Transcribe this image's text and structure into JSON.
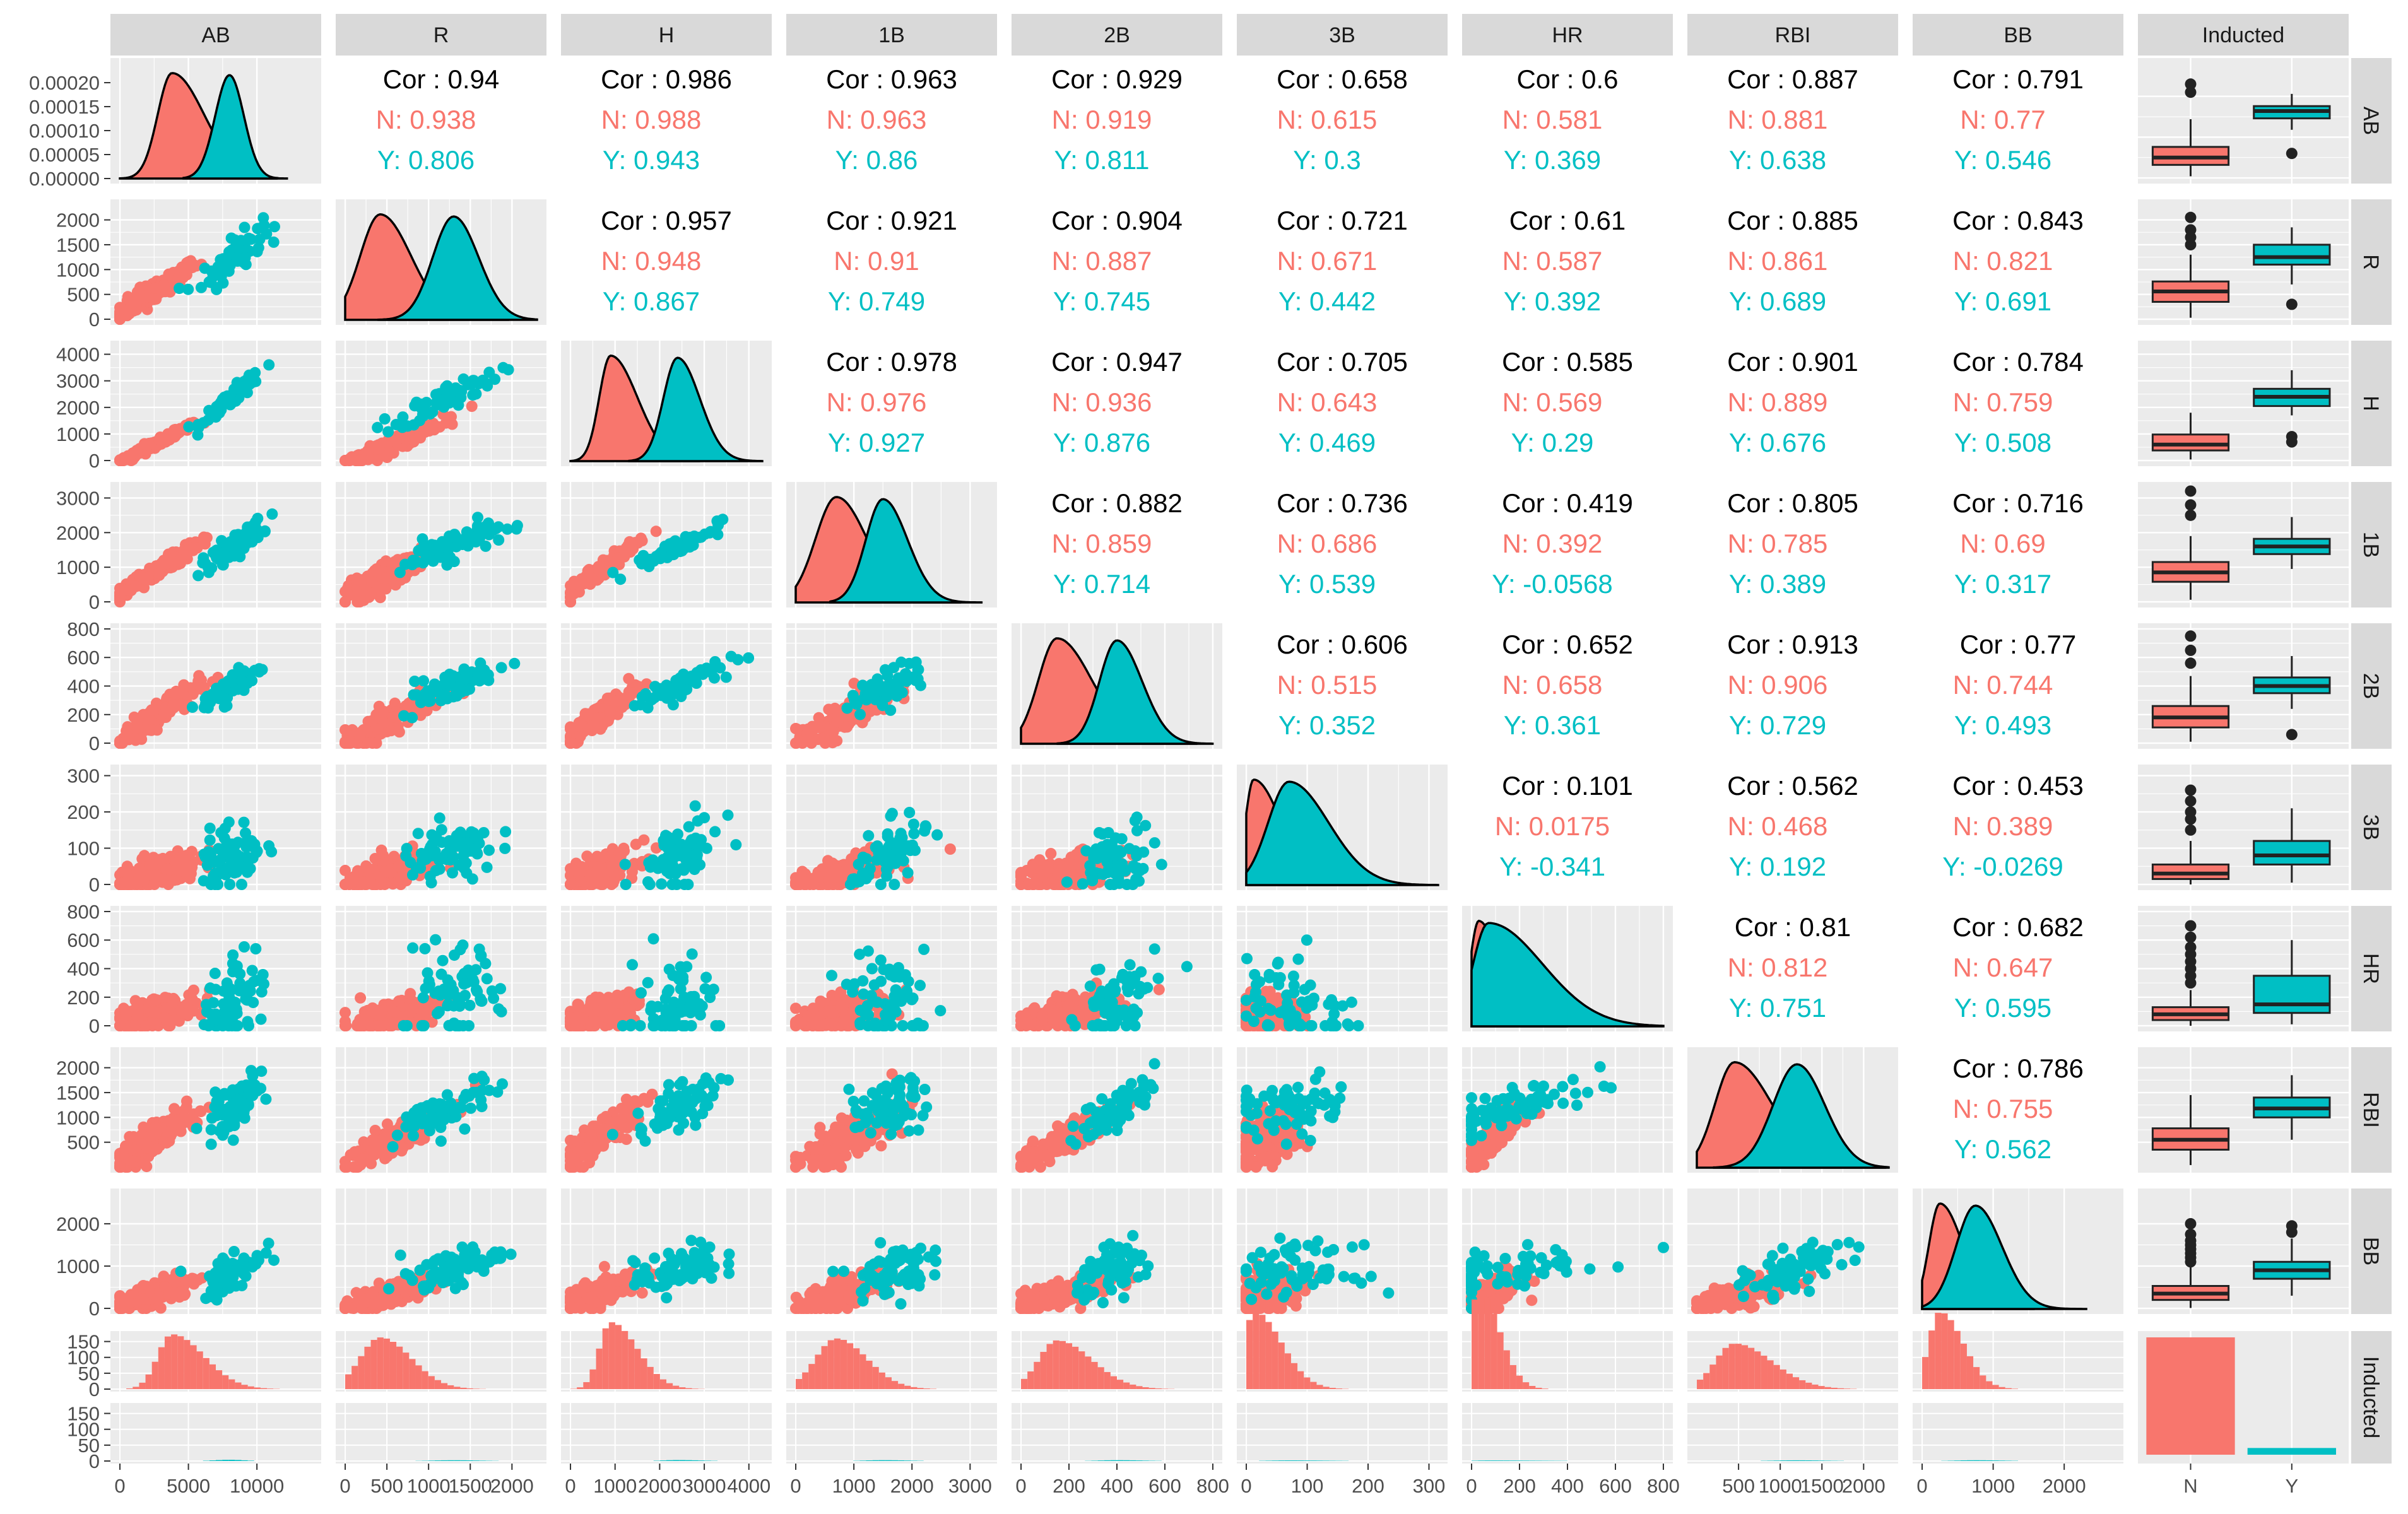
{
  "colors": {
    "N": "#F8766D",
    "Y": "#00BFC4",
    "panel_bg": "#EBEBEB",
    "strip_bg": "#D9D9D9",
    "grid": "#FFFFFF"
  },
  "chart_data": {
    "type": "scatter-matrix",
    "variables": [
      "AB",
      "R",
      "H",
      "1B",
      "2B",
      "3B",
      "HR",
      "RBI",
      "BB"
    ],
    "factor": {
      "name": "Inducted",
      "levels": [
        "N",
        "Y"
      ],
      "counts": [
        175,
        10
      ]
    },
    "columns": [
      "AB",
      "R",
      "H",
      "1B",
      "2B",
      "3B",
      "HR",
      "RBI",
      "BB",
      "Inducted"
    ],
    "rows": [
      "AB",
      "R",
      "H",
      "1B",
      "2B",
      "3B",
      "HR",
      "RBI",
      "BB",
      "Inducted"
    ],
    "axis_ticks": {
      "AB": {
        "values": [
          0,
          5000,
          10000
        ],
        "labels": [
          "0",
          "5000",
          "10000"
        ],
        "range": [
          0,
          14000
        ]
      },
      "R": {
        "values": [
          0,
          500,
          1000,
          1500,
          2000
        ],
        "labels": [
          "0",
          "500",
          "1000",
          "1500",
          "2000"
        ],
        "range": [
          0,
          2300
        ]
      },
      "H": {
        "values": [
          0,
          1000,
          2000,
          3000,
          4000
        ],
        "labels": [
          "0",
          "1000",
          "2000",
          "3000",
          "4000"
        ],
        "range": [
          0,
          4300
        ]
      },
      "1B": {
        "values": [
          0,
          1000,
          2000,
          3000
        ],
        "labels": [
          "0",
          "1000",
          "2000",
          "3000"
        ],
        "range": [
          0,
          3300
        ]
      },
      "2B": {
        "values": [
          0,
          200,
          400,
          600,
          800
        ],
        "labels": [
          "0",
          "200",
          "400",
          "600",
          "800"
        ],
        "range": [
          0,
          800
        ]
      },
      "3B": {
        "values": [
          0,
          100,
          200,
          300
        ],
        "labels": [
          "0",
          "100",
          "200",
          "300"
        ],
        "range": [
          0,
          315
        ]
      },
      "HR": {
        "values": [
          0,
          200,
          400,
          600,
          800
        ],
        "labels": [
          "0",
          "200",
          "400",
          "600",
          "800"
        ],
        "range": [
          0,
          800
        ]
      },
      "RBI": {
        "values": [
          500,
          1000,
          1500,
          2000
        ],
        "labels": [
          "500",
          "1000",
          "1500",
          "2000"
        ],
        "range": [
          0,
          2300
        ]
      },
      "BB": {
        "values": [
          0,
          1000,
          2000
        ],
        "labels": [
          "0",
          "1000",
          "2000"
        ],
        "range": [
          0,
          2700
        ]
      }
    },
    "density_ticks": {
      "values": [
        0,
        5e-05,
        0.0001,
        0.00015,
        0.0002
      ],
      "labels": [
        "0.00000",
        "0.00005",
        "0.00010",
        "0.00015",
        "0.00020"
      ],
      "range": [
        0,
        0.00022
      ]
    },
    "hist_count_ticks": {
      "values": [
        0,
        50,
        100,
        150
      ],
      "labels": [
        "0",
        "50",
        "100",
        "150"
      ],
      "range": [
        0,
        175
      ]
    },
    "bar_x_labels": [
      "N",
      "Y"
    ],
    "correlations": [
      {
        "row": "AB",
        "col": "R",
        "cor": "Cor : 0.94",
        "N": "N: 0.938",
        "Y": "Y: 0.806"
      },
      {
        "row": "AB",
        "col": "H",
        "cor": "Cor : 0.986",
        "N": "N: 0.988",
        "Y": "Y: 0.943"
      },
      {
        "row": "AB",
        "col": "1B",
        "cor": "Cor : 0.963",
        "N": "N: 0.963",
        "Y": "Y: 0.86"
      },
      {
        "row": "AB",
        "col": "2B",
        "cor": "Cor : 0.929",
        "N": "N: 0.919",
        "Y": "Y: 0.811"
      },
      {
        "row": "AB",
        "col": "3B",
        "cor": "Cor : 0.658",
        "N": "N: 0.615",
        "Y": "Y: 0.3"
      },
      {
        "row": "AB",
        "col": "HR",
        "cor": "Cor : 0.6",
        "N": "N: 0.581",
        "Y": "Y: 0.369"
      },
      {
        "row": "AB",
        "col": "RBI",
        "cor": "Cor : 0.887",
        "N": "N: 0.881",
        "Y": "Y: 0.638"
      },
      {
        "row": "AB",
        "col": "BB",
        "cor": "Cor : 0.791",
        "N": "N: 0.77",
        "Y": "Y: 0.546"
      },
      {
        "row": "R",
        "col": "H",
        "cor": "Cor : 0.957",
        "N": "N: 0.948",
        "Y": "Y: 0.867"
      },
      {
        "row": "R",
        "col": "1B",
        "cor": "Cor : 0.921",
        "N": "N: 0.91",
        "Y": "Y: 0.749"
      },
      {
        "row": "R",
        "col": "2B",
        "cor": "Cor : 0.904",
        "N": "N: 0.887",
        "Y": "Y: 0.745"
      },
      {
        "row": "R",
        "col": "3B",
        "cor": "Cor : 0.721",
        "N": "N: 0.671",
        "Y": "Y: 0.442"
      },
      {
        "row": "R",
        "col": "HR",
        "cor": "Cor : 0.61",
        "N": "N: 0.587",
        "Y": "Y: 0.392"
      },
      {
        "row": "R",
        "col": "RBI",
        "cor": "Cor : 0.885",
        "N": "N: 0.861",
        "Y": "Y: 0.689"
      },
      {
        "row": "R",
        "col": "BB",
        "cor": "Cor : 0.843",
        "N": "N: 0.821",
        "Y": "Y: 0.691"
      },
      {
        "row": "H",
        "col": "1B",
        "cor": "Cor : 0.978",
        "N": "N: 0.976",
        "Y": "Y: 0.927"
      },
      {
        "row": "H",
        "col": "2B",
        "cor": "Cor : 0.947",
        "N": "N: 0.936",
        "Y": "Y: 0.876"
      },
      {
        "row": "H",
        "col": "3B",
        "cor": "Cor : 0.705",
        "N": "N: 0.643",
        "Y": "Y: 0.469"
      },
      {
        "row": "H",
        "col": "HR",
        "cor": "Cor : 0.585",
        "N": "N: 0.569",
        "Y": "Y: 0.29"
      },
      {
        "row": "H",
        "col": "RBI",
        "cor": "Cor : 0.901",
        "N": "N: 0.889",
        "Y": "Y: 0.676"
      },
      {
        "row": "H",
        "col": "BB",
        "cor": "Cor : 0.784",
        "N": "N: 0.759",
        "Y": "Y: 0.508"
      },
      {
        "row": "1B",
        "col": "2B",
        "cor": "Cor : 0.882",
        "N": "N: 0.859",
        "Y": "Y: 0.714"
      },
      {
        "row": "1B",
        "col": "3B",
        "cor": "Cor : 0.736",
        "N": "N: 0.686",
        "Y": "Y: 0.539"
      },
      {
        "row": "1B",
        "col": "HR",
        "cor": "Cor : 0.419",
        "N": "N: 0.392",
        "Y": "Y: -0.0568"
      },
      {
        "row": "1B",
        "col": "RBI",
        "cor": "Cor : 0.805",
        "N": "N: 0.785",
        "Y": "Y: 0.389"
      },
      {
        "row": "1B",
        "col": "BB",
        "cor": "Cor : 0.716",
        "N": "N: 0.69",
        "Y": "Y: 0.317"
      },
      {
        "row": "2B",
        "col": "3B",
        "cor": "Cor : 0.606",
        "N": "N: 0.515",
        "Y": "Y: 0.352"
      },
      {
        "row": "2B",
        "col": "HR",
        "cor": "Cor : 0.652",
        "N": "N: 0.658",
        "Y": "Y: 0.361"
      },
      {
        "row": "2B",
        "col": "RBI",
        "cor": "Cor : 0.913",
        "N": "N: 0.906",
        "Y": "Y: 0.729"
      },
      {
        "row": "2B",
        "col": "BB",
        "cor": "Cor : 0.77",
        "N": "N: 0.744",
        "Y": "Y: 0.493"
      },
      {
        "row": "3B",
        "col": "HR",
        "cor": "Cor : 0.101",
        "N": "N: 0.0175",
        "Y": "Y: -0.341"
      },
      {
        "row": "3B",
        "col": "RBI",
        "cor": "Cor : 0.562",
        "N": "N: 0.468",
        "Y": "Y: 0.192"
      },
      {
        "row": "3B",
        "col": "BB",
        "cor": "Cor : 0.453",
        "N": "N: 0.389",
        "Y": "Y: -0.0269"
      },
      {
        "row": "HR",
        "col": "RBI",
        "cor": "Cor : 0.81",
        "N": "N: 0.812",
        "Y": "Y: 0.751"
      },
      {
        "row": "HR",
        "col": "BB",
        "cor": "Cor : 0.682",
        "N": "N: 0.647",
        "Y": "Y: 0.595"
      },
      {
        "row": "RBI",
        "col": "BB",
        "cor": "Cor : 0.786",
        "N": "N: 0.755",
        "Y": "Y: 0.562"
      }
    ],
    "distributions": {
      "AB": {
        "N": {
          "median": 2500,
          "q1": 1600,
          "q3": 3800,
          "min": 200,
          "max": 7200,
          "peak": 3800
        },
        "Y": {
          "median": 8200,
          "q1": 7300,
          "q3": 8800,
          "min": 5900,
          "max": 10300,
          "peak": 8000
        },
        "outliers_N": [
          10500,
          11500
        ],
        "outliers_Y": [
          3000
        ]
      },
      "R": {
        "N": {
          "median": 560,
          "q1": 350,
          "q3": 760,
          "min": 30,
          "max": 1300,
          "peak": 420
        },
        "Y": {
          "median": 1250,
          "q1": 1100,
          "q3": 1500,
          "min": 700,
          "max": 1850,
          "peak": 1300
        },
        "outliers_N": [
          1500,
          1650,
          1800,
          2050
        ],
        "outliers_Y": [
          300
        ]
      },
      "H": {
        "N": {
          "median": 600,
          "q1": 380,
          "q3": 980,
          "min": 40,
          "max": 1800,
          "peak": 900
        },
        "Y": {
          "median": 2400,
          "q1": 2050,
          "q3": 2700,
          "min": 1700,
          "max": 3400,
          "peak": 2400
        },
        "outliers_N": [],
        "outliers_Y": [
          900,
          700
        ]
      },
      "1B": {
        "N": {
          "median": 850,
          "q1": 580,
          "q3": 1150,
          "min": 60,
          "max": 1900,
          "peak": 700
        },
        "Y": {
          "median": 1600,
          "q1": 1380,
          "q3": 1820,
          "min": 950,
          "max": 2450,
          "peak": 1500
        },
        "outliers_N": [
          2500,
          2800,
          3200
        ],
        "outliers_Y": []
      },
      "2B": {
        "N": {
          "median": 180,
          "q1": 110,
          "q3": 260,
          "min": 10,
          "max": 470,
          "peak": 150
        },
        "Y": {
          "median": 400,
          "q1": 350,
          "q3": 460,
          "min": 240,
          "max": 610,
          "peak": 400
        },
        "outliers_N": [
          560,
          650,
          750
        ],
        "outliers_Y": [
          60
        ]
      },
      "3B": {
        "N": {
          "median": 30,
          "q1": 15,
          "q3": 55,
          "min": 0,
          "max": 120,
          "peak": 12
        },
        "Y": {
          "median": 80,
          "q1": 55,
          "q3": 120,
          "min": 5,
          "max": 210,
          "peak": 70
        },
        "outliers_N": [
          150,
          180,
          200,
          230,
          260
        ],
        "outliers_Y": []
      },
      "HR": {
        "N": {
          "median": 80,
          "q1": 40,
          "q3": 130,
          "min": 0,
          "max": 250,
          "peak": 30
        },
        "Y": {
          "median": 150,
          "q1": 90,
          "q3": 350,
          "min": 10,
          "max": 600,
          "peak": 70
        },
        "outliers_N": [
          300,
          350,
          400,
          450,
          500,
          550,
          620,
          700
        ],
        "outliers_Y": []
      },
      "RBI": {
        "N": {
          "median": 550,
          "q1": 350,
          "q3": 780,
          "min": 40,
          "max": 1450,
          "peak": 450
        },
        "Y": {
          "median": 1180,
          "q1": 1000,
          "q3": 1400,
          "min": 550,
          "max": 1850,
          "peak": 1200
        },
        "outliers_N": [],
        "outliers_Y": []
      },
      "BB": {
        "N": {
          "median": 350,
          "q1": 200,
          "q3": 530,
          "min": 10,
          "max": 1000,
          "peak": 250
        },
        "Y": {
          "median": 900,
          "q1": 700,
          "q3": 1100,
          "min": 300,
          "max": 1650,
          "peak": 750
        },
        "outliers_N": [
          1100,
          1200,
          1300,
          1400,
          1500,
          1600,
          1750,
          2000
        ],
        "outliers_Y": [
          1800,
          1950
        ]
      }
    },
    "grid": true,
    "legend": "none"
  }
}
